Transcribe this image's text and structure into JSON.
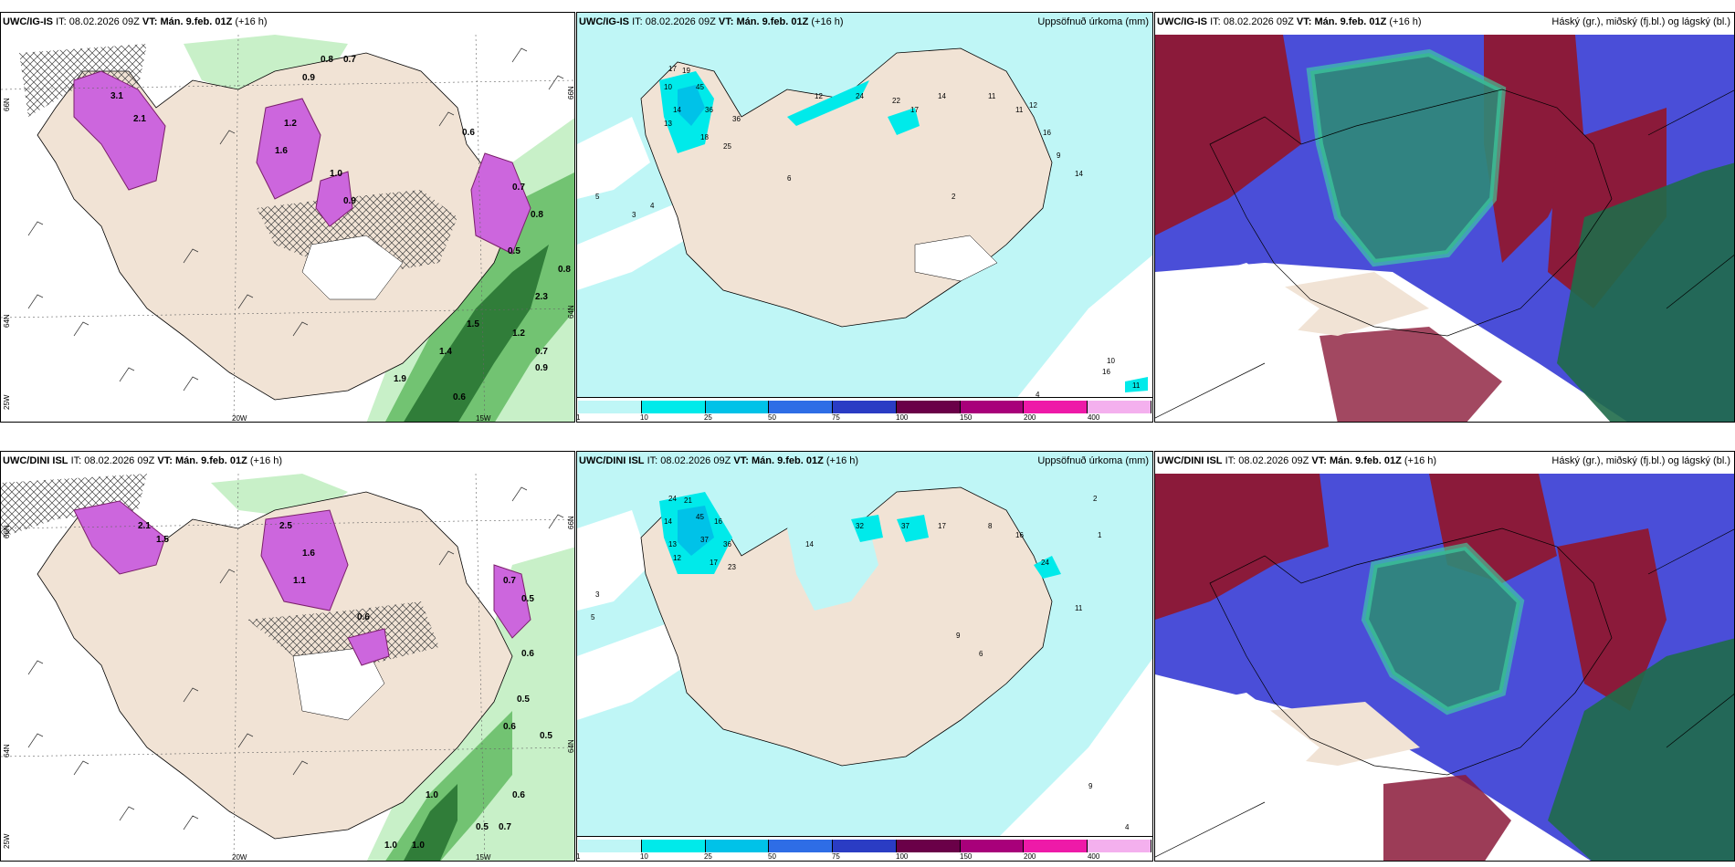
{
  "panels": [
    {
      "model": "UWC/IG-IS",
      "it_label": "IT:",
      "issue_time": "08.02.2026 09Z",
      "vt_label": "VT:",
      "valid_time": "Mán. 9.feb. 01Z",
      "lead": "(+16 h)",
      "right_title": "",
      "axis_labels": {
        "lat_top": "66N",
        "lat_mid": "64N",
        "lon_left": "25W",
        "lon_mid": "20W",
        "lon_right": "15W",
        "lat_right": "66N",
        "lat_right2": "64N"
      },
      "values": [
        "0.8",
        "0.7",
        "0.9",
        "3.1",
        "2.1",
        "1.2",
        "1.6",
        "1.0",
        "0.9",
        "0.6",
        "0.7",
        "0.8",
        "0.5",
        "1.5",
        "1.4",
        "1.9",
        "0.6",
        "0.7",
        "0.9",
        "2.3",
        "1.2",
        "0.8"
      ]
    },
    {
      "model": "UWC/IG-IS",
      "it_label": "IT:",
      "issue_time": "08.02.2026 09Z",
      "vt_label": "VT:",
      "valid_time": "Mán. 9.feb. 01Z",
      "lead": "(+16 h)",
      "right_title": "Uppsöfnuð úrkoma (mm)",
      "values": [
        "17",
        "19",
        "10",
        "45",
        "14",
        "36",
        "13",
        "18",
        "25",
        "36",
        "12",
        "24",
        "22",
        "17",
        "14",
        "11",
        "11",
        "12",
        "16",
        "9",
        "14",
        "5",
        "3",
        "4",
        "6",
        "2",
        "10",
        "16",
        "11",
        "4"
      ],
      "legend": {
        "ticks": [
          "1",
          "10",
          "25",
          "50",
          "75",
          "100",
          "150",
          "200",
          "400"
        ],
        "colors": [
          "#bff6f6",
          "#00eaea",
          "#00c2e8",
          "#2e6de6",
          "#2a3cc4",
          "#6a0048",
          "#a8007a",
          "#ee1aa8",
          "#f4b0ee"
        ]
      }
    },
    {
      "model": "UWC/IG-IS",
      "it_label": "IT:",
      "issue_time": "08.02.2026 09Z",
      "vt_label": "VT:",
      "valid_time": "Mán. 9.feb. 01Z",
      "lead": "(+16 h)",
      "right_title": "Háský (gr.), miðský (fj.bl.) og lágský (bl.)"
    },
    {
      "model": "UWC/DINI ISL",
      "it_label": "IT:",
      "issue_time": "08.02.2026 09Z",
      "vt_label": "VT:",
      "valid_time": "Mán. 9.feb. 01Z",
      "lead": "(+16 h)",
      "right_title": "",
      "axis_labels": {
        "lat_top": "66N",
        "lat_mid": "64N",
        "lon_left": "25W",
        "lon_mid": "20W",
        "lon_right": "15W",
        "lat_right": "66N",
        "lat_right2": "64N"
      },
      "values": [
        "2.1",
        "1.5",
        "2.5",
        "1.6",
        "1.1",
        "0.6",
        "0.7",
        "0.5",
        "0.6",
        "0.5",
        "0.6",
        "1.0",
        "0.6",
        "0.5",
        "0.7",
        "1.0",
        "1.0",
        "0.5"
      ]
    },
    {
      "model": "UWC/DINI ISL",
      "it_label": "IT:",
      "issue_time": "08.02.2026 09Z",
      "vt_label": "VT:",
      "valid_time": "Mán. 9.feb. 01Z",
      "lead": "(+16 h)",
      "right_title": "Uppsöfnuð úrkoma (mm)",
      "values": [
        "24",
        "21",
        "14",
        "45",
        "16",
        "37",
        "36",
        "13",
        "12",
        "17",
        "23",
        "14",
        "32",
        "37",
        "17",
        "16",
        "24",
        "8",
        "9",
        "6",
        "5",
        "3",
        "11",
        "1",
        "4",
        "2",
        "9"
      ],
      "legend": {
        "ticks": [
          "1",
          "10",
          "25",
          "50",
          "75",
          "100",
          "150",
          "200",
          "400"
        ],
        "colors": [
          "#bff6f6",
          "#00eaea",
          "#00c2e8",
          "#2e6de6",
          "#2a3cc4",
          "#6a0048",
          "#a8007a",
          "#ee1aa8",
          "#f4b0ee"
        ]
      }
    },
    {
      "model": "UWC/DINI ISL",
      "it_label": "IT:",
      "issue_time": "08.02.2026 09Z",
      "vt_label": "VT:",
      "valid_time": "Mán. 9.feb. 01Z",
      "lead": "(+16 h)",
      "right_title": "Háský (gr.), miðský (fj.bl.) og lágský (bl.)"
    }
  ],
  "colors": {
    "land": "#f1e3d5",
    "sea_precip": "#bff6f6",
    "sea_white": "#ffffff",
    "green_light": "#c8f0c8",
    "green_mid": "#5cb85c",
    "green_dark": "#1f6b2a",
    "magenta": "#cc66dd",
    "purple_dark": "#7a1f6a",
    "cloud_high": "#2f8a78",
    "cloud_mid": "#8b1a3a",
    "cloud_low": "#4a4ed8",
    "cloud_teal": "#3fd9a5"
  }
}
